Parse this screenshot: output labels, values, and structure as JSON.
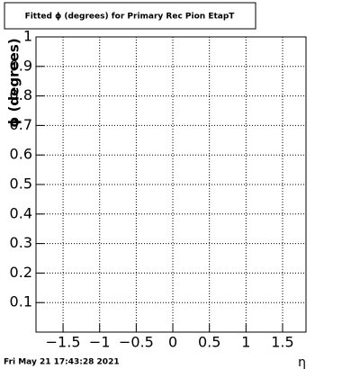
{
  "chart_data": {
    "type": "scatter",
    "title": "Fitted ϕ (degrees) for Primary Rec Pion EtapT",
    "x_label": "η",
    "y_label": "ϕ (degrees)",
    "timestamp": "Fri May 21 17:43:28 2021",
    "xlim": [
      -1.87,
      1.82
    ],
    "xticks": [
      {
        "value": -1.5,
        "label": "−1.5"
      },
      {
        "value": -1,
        "label": "−1"
      },
      {
        "value": -0.5,
        "label": "−0.5"
      },
      0,
      0.5,
      1,
      1.5
    ],
    "ylim": [
      0,
      1
    ],
    "yticks": [
      0.1,
      0.2,
      0.3,
      0.4,
      0.5,
      0.6,
      0.7,
      0.8,
      0.9,
      1
    ],
    "grid": true
  }
}
